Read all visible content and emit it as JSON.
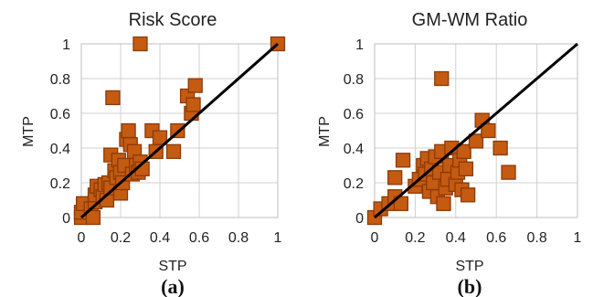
{
  "chart_data": [
    {
      "type": "scatter",
      "title": "Risk Score",
      "xlabel": "STP",
      "ylabel": "MTP",
      "panel_label": "(a)",
      "xlim": [
        0,
        1
      ],
      "ylim": [
        0,
        1
      ],
      "xticks": [
        "0",
        "0.2",
        "0.4",
        "0.6",
        "0.8",
        "1"
      ],
      "yticks": [
        "0",
        "0.2",
        "0.4",
        "0.6",
        "0.8",
        "1"
      ],
      "grid": true,
      "identity_line": true,
      "marker_color": "#c55a11",
      "marker_edge": "#8a3b08",
      "points": [
        [
          0.0,
          0.0
        ],
        [
          0.0,
          0.03
        ],
        [
          0.01,
          0.08
        ],
        [
          0.05,
          0.05
        ],
        [
          0.06,
          0.0
        ],
        [
          0.07,
          0.09
        ],
        [
          0.07,
          0.13
        ],
        [
          0.08,
          0.18
        ],
        [
          0.1,
          0.16
        ],
        [
          0.11,
          0.12
        ],
        [
          0.12,
          0.19
        ],
        [
          0.13,
          0.1
        ],
        [
          0.14,
          0.2
        ],
        [
          0.15,
          0.17
        ],
        [
          0.15,
          0.36
        ],
        [
          0.16,
          0.69
        ],
        [
          0.17,
          0.27
        ],
        [
          0.18,
          0.23
        ],
        [
          0.19,
          0.33
        ],
        [
          0.2,
          0.14
        ],
        [
          0.2,
          0.26
        ],
        [
          0.21,
          0.2
        ],
        [
          0.22,
          0.3
        ],
        [
          0.23,
          0.45
        ],
        [
          0.24,
          0.5
        ],
        [
          0.25,
          0.42
        ],
        [
          0.26,
          0.25
        ],
        [
          0.27,
          0.38
        ],
        [
          0.28,
          0.3
        ],
        [
          0.29,
          0.26
        ],
        [
          0.3,
          0.32
        ],
        [
          0.3,
          1.0
        ],
        [
          0.31,
          0.28
        ],
        [
          0.36,
          0.5
        ],
        [
          0.38,
          0.38
        ],
        [
          0.4,
          0.46
        ],
        [
          0.47,
          0.38
        ],
        [
          0.49,
          0.5
        ],
        [
          0.54,
          0.7
        ],
        [
          0.56,
          0.6
        ],
        [
          0.57,
          0.65
        ],
        [
          0.58,
          0.76
        ],
        [
          1.0,
          1.0
        ]
      ]
    },
    {
      "type": "scatter",
      "title": "GM-WM Ratio",
      "xlabel": "STP",
      "ylabel": "MTP",
      "panel_label": "(b)",
      "xlim": [
        0,
        1
      ],
      "ylim": [
        0,
        1
      ],
      "xticks": [
        "0",
        "0.2",
        "0.4",
        "0.6",
        "0.8",
        "1"
      ],
      "yticks": [
        "0",
        "0.2",
        "0.4",
        "0.6",
        "0.8",
        "1"
      ],
      "grid": true,
      "identity_line": true,
      "marker_color": "#c55a11",
      "marker_edge": "#8a3b08",
      "points": [
        [
          0.0,
          0.0
        ],
        [
          0.03,
          0.05
        ],
        [
          0.07,
          0.08
        ],
        [
          0.1,
          0.12
        ],
        [
          0.1,
          0.23
        ],
        [
          0.13,
          0.08
        ],
        [
          0.14,
          0.33
        ],
        [
          0.2,
          0.18
        ],
        [
          0.22,
          0.22
        ],
        [
          0.24,
          0.3
        ],
        [
          0.25,
          0.25
        ],
        [
          0.26,
          0.34
        ],
        [
          0.27,
          0.15
        ],
        [
          0.28,
          0.28
        ],
        [
          0.29,
          0.2
        ],
        [
          0.3,
          0.35
        ],
        [
          0.31,
          0.12
        ],
        [
          0.32,
          0.26
        ],
        [
          0.33,
          0.38
        ],
        [
          0.33,
          0.8
        ],
        [
          0.34,
          0.08
        ],
        [
          0.35,
          0.17
        ],
        [
          0.36,
          0.22
        ],
        [
          0.37,
          0.3
        ],
        [
          0.38,
          0.4
        ],
        [
          0.4,
          0.19
        ],
        [
          0.41,
          0.26
        ],
        [
          0.42,
          0.33
        ],
        [
          0.43,
          0.16
        ],
        [
          0.44,
          0.38
        ],
        [
          0.45,
          0.28
        ],
        [
          0.46,
          0.13
        ],
        [
          0.5,
          0.44
        ],
        [
          0.53,
          0.56
        ],
        [
          0.56,
          0.5
        ],
        [
          0.62,
          0.4
        ],
        [
          0.66,
          0.26
        ]
      ]
    }
  ]
}
